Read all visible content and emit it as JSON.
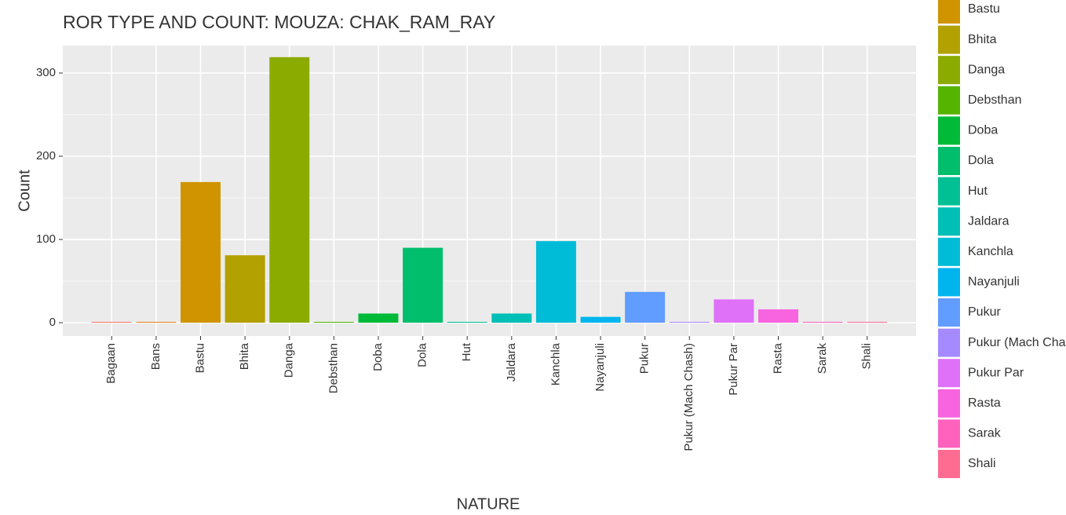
{
  "chart_data": {
    "type": "bar",
    "title": "ROR TYPE AND COUNT: MOUZA: CHAK_RAM_RAY",
    "x_label": "NATURE",
    "y_label": "Count",
    "categories": [
      "Bagaan",
      "Bans",
      "Bastu",
      "Bhita",
      "Danga",
      "Debsthan",
      "Doba",
      "Dola",
      "Hut",
      "Jaldara",
      "Kanchla",
      "Nayanjuli",
      "Pukur",
      "Pukur (Mach Chash)",
      "Pukur Par",
      "Rasta",
      "Sarak",
      "Shali"
    ],
    "values": [
      1,
      1,
      169,
      81,
      319,
      1,
      11,
      90,
      1,
      11,
      98,
      7,
      37,
      1,
      28,
      16,
      1,
      1
    ],
    "colors": [
      "#F8766D",
      "#E7851E",
      "#D09400",
      "#B2A100",
      "#8BAB00",
      "#55B400",
      "#00BA38",
      "#00BE6C",
      "#00C094",
      "#00BFB6",
      "#00BCD6",
      "#00B5EE",
      "#619CFF",
      "#A58AFF",
      "#DF70F8",
      "#F863DF",
      "#FF62BC",
      "#FF6C91"
    ],
    "ylim": [
      -16,
      333
    ],
    "yticks": [
      0,
      100,
      200,
      300
    ],
    "grid": true,
    "legend": "right"
  }
}
